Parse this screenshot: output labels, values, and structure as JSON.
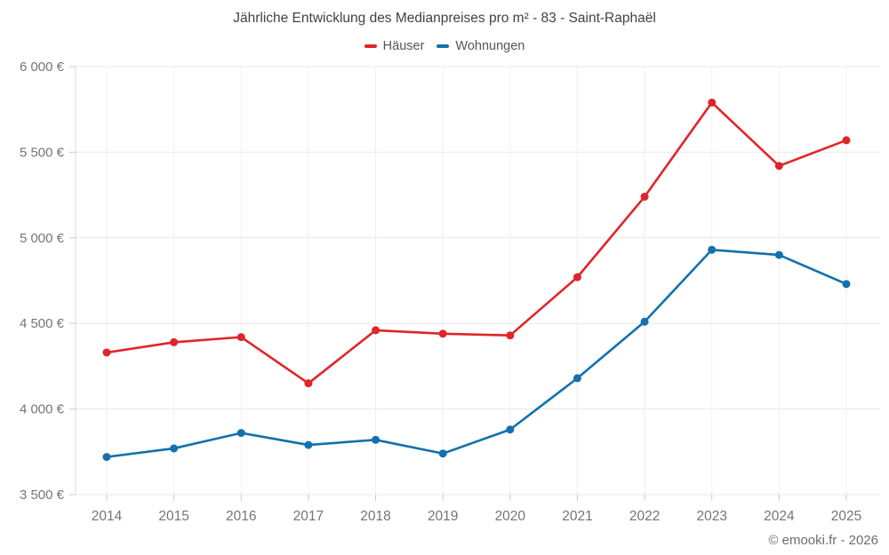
{
  "chart_data": {
    "type": "line",
    "title": "Jährliche Entwicklung des Medianpreises pro m² - 83 - Saint-Raphaël",
    "categories": [
      "2014",
      "2015",
      "2016",
      "2017",
      "2018",
      "2019",
      "2020",
      "2021",
      "2022",
      "2023",
      "2024",
      "2025"
    ],
    "series": [
      {
        "name": "Häuser",
        "color": "#e0252a",
        "values": [
          4330,
          4390,
          4420,
          4150,
          4460,
          4440,
          4430,
          4770,
          5240,
          5790,
          5420,
          5570
        ]
      },
      {
        "name": "Wohnungen",
        "color": "#1271ae",
        "values": [
          3720,
          3770,
          3860,
          3790,
          3820,
          3740,
          3880,
          4180,
          4510,
          4930,
          4900,
          4730
        ]
      }
    ],
    "ylim": [
      3500,
      6000
    ],
    "yticks": [
      3500,
      4000,
      4500,
      5000,
      5500,
      6000
    ],
    "ytick_labels": [
      "3 500 €",
      "4 000 €",
      "4 500 €",
      "5 000 €",
      "5 500 €",
      "6 000 €"
    ],
    "grid": true,
    "legend_position": "top",
    "xlabel": "",
    "ylabel": "",
    "colors": {
      "h_grid": "#e8e8e8",
      "v_grid": "#f0f0f0",
      "axis": "#d9d9d9",
      "tick": "#cccccc",
      "tick_label": "#757575",
      "title": "#424242"
    }
  },
  "footer": {
    "credit": "© emooki.fr - 2026"
  }
}
